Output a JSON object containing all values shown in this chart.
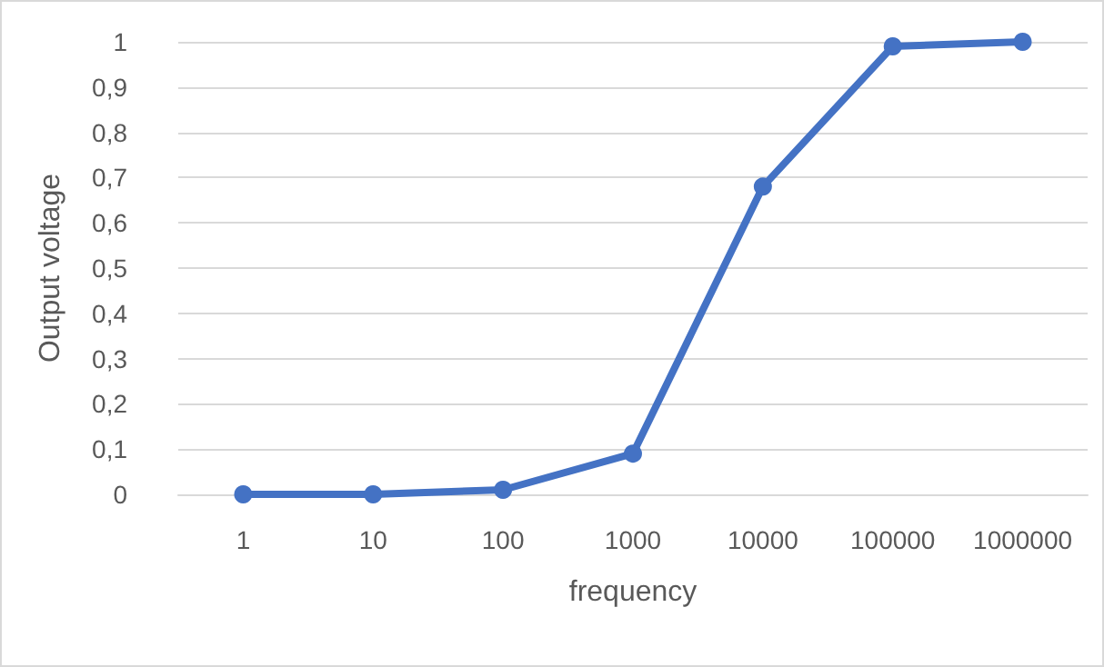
{
  "chart_data": {
    "type": "line",
    "xlabel": "frequency",
    "ylabel": "Output voltage",
    "categories": [
      "1",
      "10",
      "100",
      "1000",
      "10000",
      "100000",
      "1000000"
    ],
    "series": [
      {
        "color": "#4472c4",
        "values": [
          0,
          0,
          0.01,
          0.09,
          0.68,
          0.99,
          1
        ]
      }
    ],
    "ylim": [
      0,
      1
    ],
    "yticks": [
      0,
      {
        "value": 0.1,
        "label": "0,1"
      },
      {
        "value": 0.2,
        "label": "0,2"
      },
      {
        "value": 0.3,
        "label": "0,3"
      },
      {
        "value": 0.4,
        "label": "0,4"
      },
      {
        "value": 0.5,
        "label": "0,5"
      },
      {
        "value": 0.6,
        "label": "0,6"
      },
      {
        "value": 0.7,
        "label": "0,7"
      },
      {
        "value": 0.8,
        "label": "0,8"
      },
      {
        "value": 0.9,
        "label": "0,9"
      },
      1
    ],
    "grid": "y",
    "marker": "circle",
    "line_style": "solid"
  }
}
